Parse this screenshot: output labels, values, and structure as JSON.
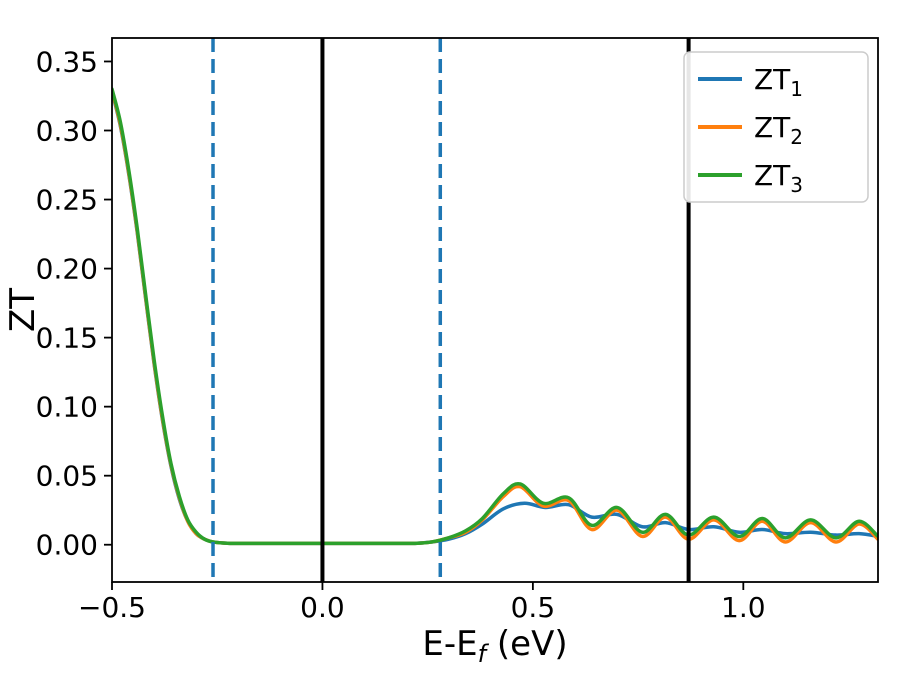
{
  "figure": {
    "background": "#ffffff",
    "axis_color": "#000000"
  },
  "chart_data": {
    "type": "line",
    "title": "",
    "ylabel": "ZT",
    "xlabel": {
      "pre": "E-E",
      "sub": "f",
      "post": " (eV)"
    },
    "xlim": [
      -0.5,
      1.32
    ],
    "ylim": [
      -0.027,
      0.367
    ],
    "grid": false,
    "xticks": {
      "values": [
        -0.5,
        0.0,
        0.5,
        1.0
      ],
      "labels": [
        "−0.5",
        "0.0",
        "0.5",
        "1.0"
      ]
    },
    "yticks": {
      "values": [
        0.0,
        0.05,
        0.1,
        0.15,
        0.2,
        0.25,
        0.3,
        0.35
      ],
      "labels": [
        "0.00",
        "0.05",
        "0.10",
        "0.15",
        "0.20",
        "0.25",
        "0.30",
        "0.35"
      ]
    },
    "legend": {
      "location": "upper right",
      "entries": [
        {
          "label": "ZT",
          "sub": "1",
          "color": "#1f77b4"
        },
        {
          "label": "ZT",
          "sub": "2",
          "color": "#ff7f0e"
        },
        {
          "label": "ZT",
          "sub": "3",
          "color": "#2ca02c"
        }
      ]
    },
    "vlines": [
      {
        "x": 0.0,
        "color": "#000000",
        "style": "solid",
        "width": 4,
        "name": "vertical-line-solid-zero"
      },
      {
        "x": 0.87,
        "color": "#000000",
        "style": "solid",
        "width": 4,
        "name": "vertical-line-solid-right"
      },
      {
        "x": -0.26,
        "color": "#1f77b4",
        "style": "dashed",
        "width": 3.5,
        "name": "vertical-line-dashed-left"
      },
      {
        "x": 0.28,
        "color": "#1f77b4",
        "style": "dashed",
        "width": 3.5,
        "name": "vertical-line-dashed-right"
      }
    ],
    "series": [
      {
        "name": "ZT1",
        "color": "#1f77b4",
        "points": [
          [
            -0.5,
            0.328
          ],
          [
            -0.48,
            0.303
          ],
          [
            -0.46,
            0.268
          ],
          [
            -0.44,
            0.226
          ],
          [
            -0.42,
            0.178
          ],
          [
            -0.4,
            0.131
          ],
          [
            -0.38,
            0.09
          ],
          [
            -0.36,
            0.057
          ],
          [
            -0.34,
            0.033
          ],
          [
            -0.32,
            0.017
          ],
          [
            -0.3,
            0.008
          ],
          [
            -0.28,
            0.004
          ],
          [
            -0.26,
            0.002
          ],
          [
            -0.22,
            0.001
          ],
          [
            -0.15,
            0.001
          ],
          [
            -0.05,
            0.001
          ],
          [
            0.05,
            0.001
          ],
          [
            0.15,
            0.001
          ],
          [
            0.22,
            0.001
          ],
          [
            0.26,
            0.002
          ],
          [
            0.3,
            0.004
          ],
          [
            0.34,
            0.008
          ],
          [
            0.38,
            0.015
          ],
          [
            0.43,
            0.026
          ],
          [
            0.48,
            0.03
          ],
          [
            0.53,
            0.027
          ],
          [
            0.585,
            0.029
          ],
          [
            0.64,
            0.02
          ],
          [
            0.7,
            0.022
          ],
          [
            0.76,
            0.013
          ],
          [
            0.815,
            0.016
          ],
          [
            0.87,
            0.011
          ],
          [
            0.93,
            0.013
          ],
          [
            0.99,
            0.009
          ],
          [
            1.045,
            0.011
          ],
          [
            1.1,
            0.008
          ],
          [
            1.16,
            0.009
          ],
          [
            1.22,
            0.007
          ],
          [
            1.275,
            0.008
          ],
          [
            1.32,
            0.006
          ]
        ]
      },
      {
        "name": "ZT2",
        "color": "#ff7f0e",
        "points": [
          [
            -0.5,
            0.329
          ],
          [
            -0.48,
            0.304
          ],
          [
            -0.46,
            0.269
          ],
          [
            -0.44,
            0.227
          ],
          [
            -0.42,
            0.179
          ],
          [
            -0.4,
            0.132
          ],
          [
            -0.38,
            0.091
          ],
          [
            -0.36,
            0.058
          ],
          [
            -0.34,
            0.034
          ],
          [
            -0.32,
            0.017
          ],
          [
            -0.3,
            0.008
          ],
          [
            -0.28,
            0.004
          ],
          [
            -0.26,
            0.002
          ],
          [
            -0.22,
            0.001
          ],
          [
            -0.15,
            0.001
          ],
          [
            -0.05,
            0.001
          ],
          [
            0.05,
            0.001
          ],
          [
            0.15,
            0.001
          ],
          [
            0.22,
            0.001
          ],
          [
            0.26,
            0.002
          ],
          [
            0.3,
            0.005
          ],
          [
            0.34,
            0.009
          ],
          [
            0.38,
            0.018
          ],
          [
            0.43,
            0.035
          ],
          [
            0.47,
            0.042
          ],
          [
            0.525,
            0.028
          ],
          [
            0.585,
            0.032
          ],
          [
            0.64,
            0.011
          ],
          [
            0.7,
            0.025
          ],
          [
            0.76,
            0.006
          ],
          [
            0.815,
            0.02
          ],
          [
            0.87,
            0.004
          ],
          [
            0.93,
            0.018
          ],
          [
            0.99,
            0.003
          ],
          [
            1.045,
            0.017
          ],
          [
            1.1,
            0.002
          ],
          [
            1.16,
            0.016
          ],
          [
            1.22,
            0.002
          ],
          [
            1.275,
            0.015
          ],
          [
            1.32,
            0.004
          ]
        ]
      },
      {
        "name": "ZT3",
        "color": "#2ca02c",
        "points": [
          [
            -0.5,
            0.33
          ],
          [
            -0.48,
            0.306
          ],
          [
            -0.46,
            0.271
          ],
          [
            -0.44,
            0.229
          ],
          [
            -0.42,
            0.181
          ],
          [
            -0.4,
            0.134
          ],
          [
            -0.38,
            0.093
          ],
          [
            -0.36,
            0.059
          ],
          [
            -0.34,
            0.035
          ],
          [
            -0.32,
            0.018
          ],
          [
            -0.3,
            0.009
          ],
          [
            -0.28,
            0.004
          ],
          [
            -0.26,
            0.002
          ],
          [
            -0.22,
            0.001
          ],
          [
            -0.15,
            0.001
          ],
          [
            -0.05,
            0.001
          ],
          [
            0.05,
            0.001
          ],
          [
            0.15,
            0.001
          ],
          [
            0.22,
            0.001
          ],
          [
            0.26,
            0.002
          ],
          [
            0.3,
            0.005
          ],
          [
            0.34,
            0.01
          ],
          [
            0.38,
            0.019
          ],
          [
            0.43,
            0.037
          ],
          [
            0.47,
            0.044
          ],
          [
            0.525,
            0.03
          ],
          [
            0.585,
            0.034
          ],
          [
            0.64,
            0.014
          ],
          [
            0.7,
            0.027
          ],
          [
            0.76,
            0.009
          ],
          [
            0.815,
            0.022
          ],
          [
            0.87,
            0.007
          ],
          [
            0.93,
            0.02
          ],
          [
            0.99,
            0.006
          ],
          [
            1.045,
            0.019
          ],
          [
            1.1,
            0.005
          ],
          [
            1.16,
            0.018
          ],
          [
            1.22,
            0.005
          ],
          [
            1.275,
            0.017
          ],
          [
            1.32,
            0.006
          ]
        ]
      }
    ]
  }
}
